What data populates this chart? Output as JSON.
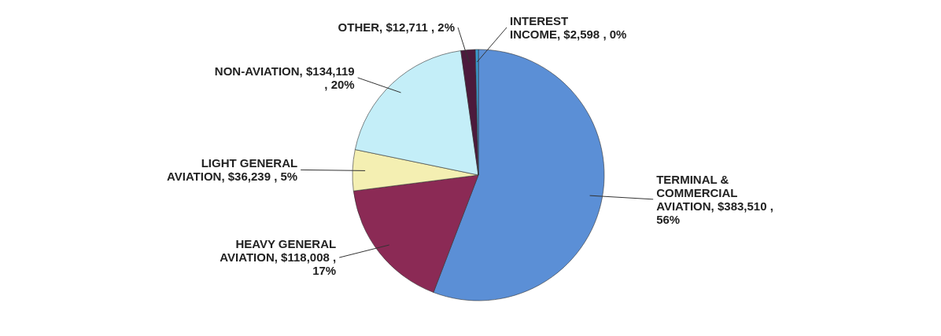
{
  "chart_data": {
    "type": "pie",
    "categories": [
      "TERMINAL & COMMERCIAL AVIATION",
      "HEAVY GENERAL AVIATION",
      "LIGHT GENERAL AVIATION",
      "NON-AVIATION",
      "OTHER",
      "INTEREST INCOME"
    ],
    "values": [
      383510,
      118008,
      36239,
      134119,
      12711,
      2598
    ],
    "value_labels": [
      ", $383,510 , 56%",
      ", $118,008 , 17%",
      ", $36,239 , 5%",
      ", $134,119 , 20%",
      ", $12,711 , 2%",
      ", $2,598 , 0%"
    ],
    "colors": [
      "#5b8fd6",
      "#8b2a55",
      "#f4efb2",
      "#c4eef8",
      "#4c1a3c",
      "#3a9ad0"
    ],
    "legend": false
  }
}
